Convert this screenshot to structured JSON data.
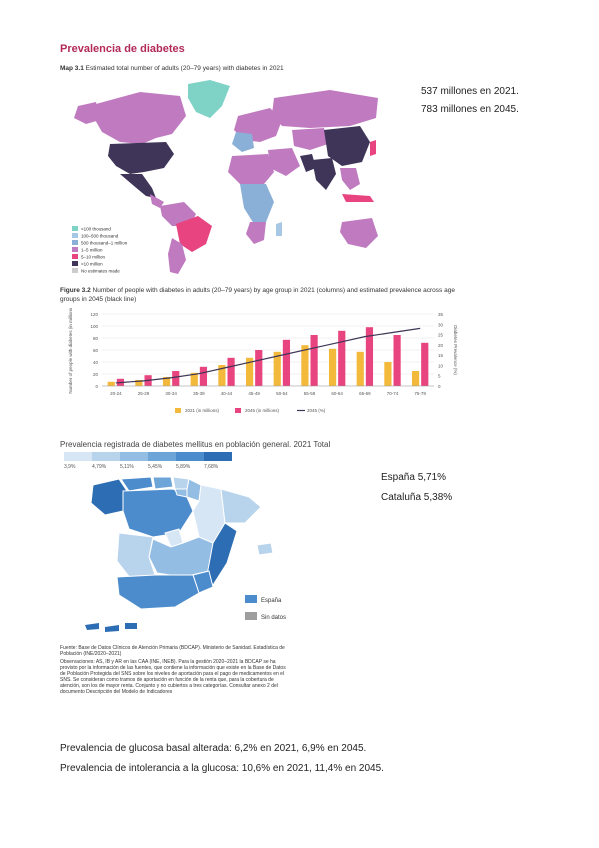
{
  "title": "Prevalencia de diabetes",
  "map1": {
    "label": "Map 3.1",
    "caption": "Estimated total number of adults (20–79 years) with diabetes in 2021",
    "legend": [
      {
        "label": "<100 thousand",
        "color": "#7fd3c6"
      },
      {
        "label": "100–500 thousand",
        "color": "#a6c8e4"
      },
      {
        "label": "500 thousand–1 million",
        "color": "#8ab0d8"
      },
      {
        "label": "1–5 million",
        "color": "#c07ac0"
      },
      {
        "label": "5–10 million",
        "color": "#e8447f"
      },
      {
        "label": ">10 million",
        "color": "#3e3558"
      },
      {
        "label": "No estimates made",
        "color": "#cccccc"
      }
    ]
  },
  "stats_world": {
    "line1": "537 millones en 2021.",
    "line2": "783 millones en 2045."
  },
  "figure": {
    "label": "Figure 3.2",
    "caption": "Number of people with diabetes in adults (20–79 years) by age group in 2021 (columns) and estimated prevalence across age groups in 2045 (black line)"
  },
  "chart_data": {
    "type": "bar",
    "categories": [
      "20-24",
      "25-29",
      "30-34",
      "35-39",
      "40-44",
      "45-49",
      "50-54",
      "55-59",
      "60-64",
      "65-69",
      "70-74",
      "75-79"
    ],
    "series": [
      {
        "name": "2021 (in millions)",
        "color": "#f2b93b",
        "values": [
          7,
          10,
          15,
          22,
          35,
          47,
          57,
          68,
          62,
          57,
          40,
          25
        ]
      },
      {
        "name": "2045 (in millions)",
        "color": "#e8447f",
        "values": [
          12,
          18,
          25,
          32,
          47,
          60,
          77,
          85,
          92,
          98,
          85,
          72
        ]
      },
      {
        "name": "2045 (%)",
        "color": "#3e3558",
        "values": [
          1.5,
          2.5,
          4,
          6,
          9,
          12,
          15,
          18,
          21,
          24,
          26,
          28
        ]
      }
    ],
    "ylabel": "Number of people with diabetes (in millions)",
    "y2label": "Diabetes Prevalence (%)",
    "ylim": [
      0,
      120
    ],
    "yticks": [
      "0",
      "20",
      "40",
      "60",
      "80",
      "100",
      "120"
    ],
    "y2lim": [
      0,
      35
    ],
    "y2ticks": [
      "0",
      "5",
      "10",
      "15",
      "20",
      "25",
      "30",
      "35"
    ],
    "legend_position": "bottom"
  },
  "spain": {
    "title": "Prevalencia registrada de diabetes mellitus en población general. 2021 Total",
    "scale": [
      {
        "label": "3,9%",
        "color": "#d6e6f5"
      },
      {
        "label": "4,79%",
        "color": "#b8d3ec"
      },
      {
        "label": "5,11%",
        "color": "#94bde3"
      },
      {
        "label": "5,45%",
        "color": "#6ea5d9"
      },
      {
        "label": "5,89%",
        "color": "#4d8ccc"
      },
      {
        "label": "7,68%",
        "color": "#2c6db4"
      }
    ],
    "legend_spain": "España",
    "legend_nodata": "Sin datos",
    "source": "Fuente: Base de Datos Clínicos de Atención Primaria (BDCAP). Ministerio de Sanidad. Estadística de Población (INE/2020–2021)",
    "notes": "Observaciones: AS, IB y AR en las CAA (INE, INEB). Para la gestión 2020–2021 la BDCAP se ha provisto por la información de las fuentes, que contiene la información que existe en la Base de Datos de Población Protegida del SNS sobre los niveles de aportación para el pago de medicamentos en el SNS. Se consideran como tramos de aportación en función de la renta que, para la cobertura de atención, son los de mayor renta. Conjunto y no cubiertos a tres categorías. Consultar anexo 2 del documento Descripción del Modelo de Indicadores"
  },
  "stats_spain": {
    "line1": "España 5,71%",
    "line2": "Cataluña 5,38%"
  },
  "bottom": {
    "line1": "Prevalencia de glucosa basal alterada: 6,2% en 2021, 6,9% en 2045.",
    "line2": "Prevalencia de intolerancia a la glucosa: 10,6% en 2021, 11,4% en 2045."
  }
}
